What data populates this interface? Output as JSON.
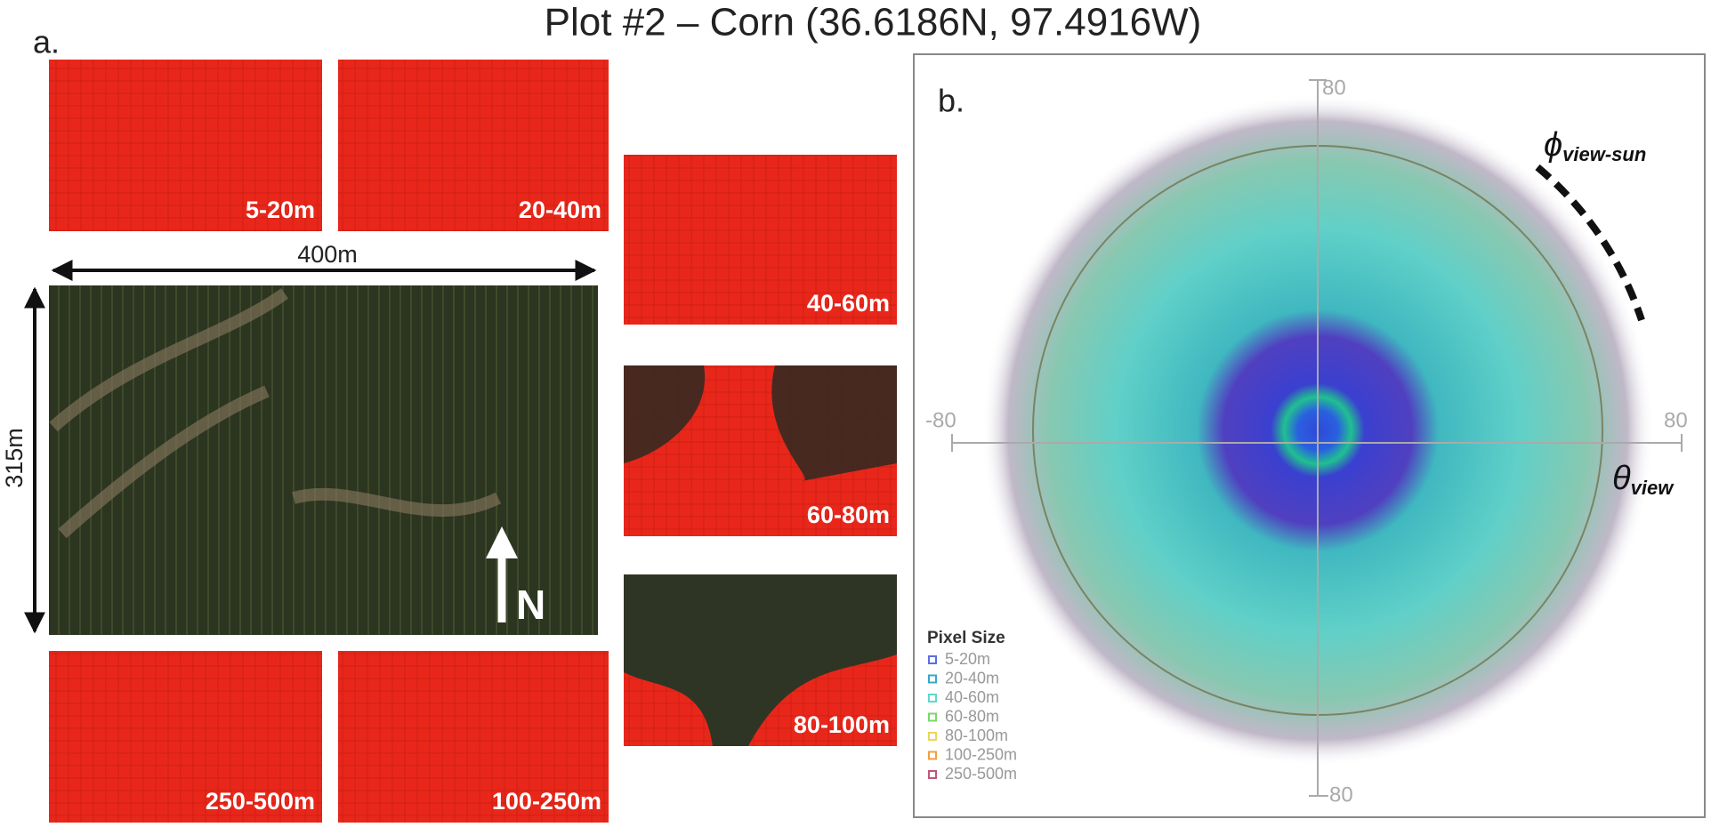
{
  "header": {
    "title": "Plot #2 – Corn (36.6186N, 97.4916W)"
  },
  "panel_a": {
    "label": "a.",
    "tiles": [
      {
        "label": "5-20m"
      },
      {
        "label": "20-40m"
      },
      {
        "label": "40-60m"
      },
      {
        "label": "60-80m"
      },
      {
        "label": "80-100m"
      },
      {
        "label": "250-500m"
      },
      {
        "label": "100-250m"
      }
    ],
    "width_label": "400m",
    "height_label": "315m",
    "north_label": "N"
  },
  "panel_b": {
    "label": "b.",
    "axis_labels": {
      "top": "80",
      "left": "-80",
      "right": "80",
      "bottom": "-80"
    },
    "phi_label": {
      "symbol": "ϕ",
      "subscript": "view-sun"
    },
    "theta_label": {
      "symbol": "θ",
      "subscript": "view"
    },
    "legend": {
      "title": "Pixel Size",
      "items": [
        {
          "label": "5-20m",
          "color": "#5a6fe0"
        },
        {
          "label": "20-40m",
          "color": "#3aa8c8"
        },
        {
          "label": "40-60m",
          "color": "#5fd8d0"
        },
        {
          "label": "60-80m",
          "color": "#7ad86a"
        },
        {
          "label": "80-100m",
          "color": "#e8d85a"
        },
        {
          "label": "100-250m",
          "color": "#f0a040"
        },
        {
          "label": "250-500m",
          "color": "#c05878"
        }
      ]
    }
  }
}
